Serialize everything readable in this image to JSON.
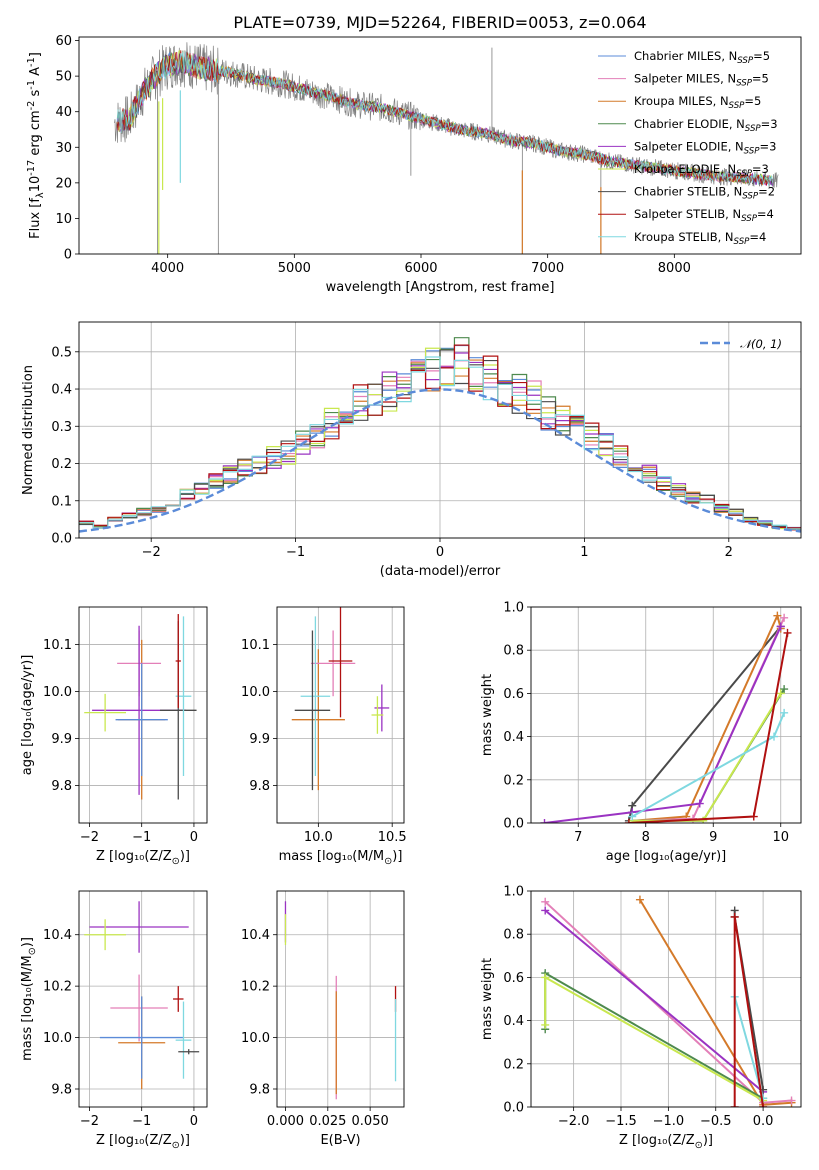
{
  "figure_title": "PLATE=0739, MJD=52264, FIBERID=0053, z=0.064",
  "colors": {
    "grey": "#7f7f7f",
    "blue": "#5b8bd8",
    "pink": "#e37fb8",
    "orange": "#d47a2a",
    "green": "#4e8a4e",
    "purple": "#9a33c2",
    "yellowgreen": "#c9e84f",
    "dark": "#4a4a4a",
    "red": "#b01010",
    "cyan": "#7fd8e0"
  },
  "chart_data": [
    {
      "id": "spectrum",
      "type": "line",
      "xlabel": "wavelength [Angstrom, rest frame]",
      "ylabel": "Flux [f$_\\lambda$10$^{-17}$ erg cm$^{-2}$ s$^{-1}$ A$^{-1}$]",
      "xlim": [
        3300,
        9000
      ],
      "ylim": [
        0,
        61
      ],
      "xticks": [
        4000,
        5000,
        6000,
        7000,
        8000
      ],
      "yticks": [
        0,
        10,
        20,
        30,
        40,
        50,
        60
      ],
      "grid": false,
      "legend_placement": "top-right",
      "series": [
        {
          "name": "Chabrier MILES, N_SSP=5",
          "color": "#5b8bd8"
        },
        {
          "name": "Salpeter MILES, N_SSP=5",
          "color": "#e37fb8"
        },
        {
          "name": "Kroupa MILES, N_SSP=5",
          "color": "#d47a2a"
        },
        {
          "name": "Chabrier ELODIE, N_SSP=3",
          "color": "#4e8a4e"
        },
        {
          "name": "Salpeter ELODIE, N_SSP=3",
          "color": "#9a33c2"
        },
        {
          "name": "Kroupa ELODIE, N_SSP=3",
          "color": "#c9e84f"
        },
        {
          "name": "Chabrier STELIB, N_SSP=2",
          "color": "#4a4a4a"
        },
        {
          "name": "Salpeter STELIB, N_SSP=4",
          "color": "#b01010"
        },
        {
          "name": "Kroupa STELIB, N_SSP=4",
          "color": "#7fd8e0"
        }
      ],
      "data_continuum": {
        "x": [
          3580,
          3700,
          3800,
          3900,
          4000,
          4100,
          4200,
          4300,
          4500,
          4700,
          4900,
          5100,
          5300,
          5500,
          5700,
          5900,
          6100,
          6300,
          6500,
          6700,
          6900,
          7100,
          7300,
          7500,
          7700,
          7900,
          8100,
          8300,
          8500,
          8800
        ],
        "y": [
          37,
          38,
          45,
          50,
          53,
          54,
          53,
          52,
          51,
          49,
          48,
          46,
          44,
          42,
          41,
          39,
          37,
          35,
          34,
          32,
          31,
          29,
          28,
          26,
          25,
          24,
          23,
          22,
          21.5,
          20.5
        ]
      }
    },
    {
      "id": "residuals",
      "type": "histogram",
      "xlabel": "(data-model)/error",
      "ylabel": "Normed distribution",
      "xlim": [
        -2.5,
        2.5
      ],
      "ylim": [
        0,
        0.58
      ],
      "xticks": [
        -2,
        -1,
        0,
        1,
        2
      ],
      "yticks": [
        0.0,
        0.1,
        0.2,
        0.3,
        0.4,
        0.5
      ],
      "grid": true,
      "legend_placement": "top-right",
      "reference_label": "$\\mathcal{N}(0,1)$",
      "bin_width": 0.1,
      "bin_start": -2.5,
      "hist_values": [
        0.04,
        0.03,
        0.05,
        0.06,
        0.07,
        0.08,
        0.1,
        0.12,
        0.13,
        0.15,
        0.17,
        0.19,
        0.2,
        0.22,
        0.23,
        0.25,
        0.28,
        0.31,
        0.33,
        0.36,
        0.37,
        0.39,
        0.41,
        0.44,
        0.46,
        0.47,
        0.48,
        0.45,
        0.43,
        0.4,
        0.39,
        0.37,
        0.34,
        0.31,
        0.3,
        0.27,
        0.25,
        0.22,
        0.19,
        0.17,
        0.15,
        0.13,
        0.11,
        0.1,
        0.08,
        0.07,
        0.05,
        0.04,
        0.03,
        0.025
      ]
    },
    {
      "id": "age_vs_Z",
      "type": "errorbar",
      "xlabel": "Z [$\\log_{10}(Z/Z_\\odot)$]",
      "ylabel": "age  [$\\log_{10}(age/yr)$]",
      "xlim": [
        -2.2,
        0.25
      ],
      "ylim": [
        9.72,
        10.18
      ],
      "xticks": [
        -2,
        -1,
        0
      ],
      "yticks": [
        9.8,
        9.9,
        10.0,
        10.1
      ],
      "grid": true,
      "points": [
        {
          "x": -1.0,
          "y": 9.94,
          "xerr": 0.45,
          "yerr": 0.17,
          "color": "#d47a2a"
        },
        {
          "x": -1.05,
          "y": 10.06,
          "xerr": 0.42,
          "yerr": 0.07,
          "color": "#e37fb8"
        },
        {
          "x": -1.05,
          "y": 9.96,
          "xerr": 0.9,
          "yerr": 0.18,
          "color": "#9a33c2"
        },
        {
          "x": -1.7,
          "y": 9.955,
          "xerr": 0.4,
          "yerr": 0.04,
          "color": "#c9e84f"
        },
        {
          "x": -1.0,
          "y": 9.94,
          "xerr": 0.5,
          "yerr": 0.12,
          "color": "#5b8bd8"
        },
        {
          "x": -0.3,
          "y": 9.96,
          "xerr": 0.35,
          "yerr": 0.19,
          "color": "#4a4a4a"
        },
        {
          "x": -0.2,
          "y": 9.99,
          "xerr": 0.15,
          "yerr": 0.17,
          "color": "#7fd8e0"
        },
        {
          "x": -0.3,
          "y": 10.065,
          "xerr": 0.05,
          "yerr": 0.1,
          "color": "#b01010"
        }
      ]
    },
    {
      "id": "age_vs_mass",
      "type": "errorbar",
      "xlabel": "mass [$\\log_{10}(M/M_\\odot)$]",
      "ylabel": "",
      "xlim": [
        9.72,
        10.58
      ],
      "ylim": [
        9.72,
        10.18
      ],
      "xticks": [
        10.0,
        10.5
      ],
      "yticks": [
        9.8,
        9.9,
        10.0,
        10.1
      ],
      "grid": true,
      "points": [
        {
          "x": 10.0,
          "y": 9.94,
          "xerr": 0.18,
          "yerr": 0.15,
          "color": "#d47a2a"
        },
        {
          "x": 10.1,
          "y": 10.06,
          "xerr": 0.15,
          "yerr": 0.07,
          "color": "#e37fb8"
        },
        {
          "x": 10.43,
          "y": 9.965,
          "xerr": 0.05,
          "yerr": 0.05,
          "color": "#9a33c2"
        },
        {
          "x": 10.4,
          "y": 9.95,
          "xerr": 0.04,
          "yerr": 0.04,
          "color": "#c9e84f"
        },
        {
          "x": 9.98,
          "y": 9.99,
          "xerr": 0.1,
          "yerr": 0.17,
          "color": "#7fd8e0"
        },
        {
          "x": 9.96,
          "y": 9.96,
          "xerr": 0.12,
          "yerr": 0.17,
          "color": "#4a4a4a"
        },
        {
          "x": 10.15,
          "y": 10.065,
          "xerr": 0.08,
          "yerr": 0.12,
          "color": "#b01010"
        }
      ]
    },
    {
      "id": "weight_vs_age",
      "type": "line",
      "xlabel": "age  [$\\log_{10}(age/yr)$]",
      "ylabel": "mass weight",
      "xlim": [
        6.3,
        10.3
      ],
      "ylim": [
        0.0,
        1.0
      ],
      "xticks": [
        7,
        8,
        9,
        10
      ],
      "yticks": [
        0.0,
        0.2,
        0.4,
        0.6,
        0.8,
        1.0
      ],
      "grid": true,
      "series": [
        {
          "color": "#4a4a4a",
          "x": [
            7.75,
            7.8,
            10.0
          ],
          "y": [
            0.01,
            0.08,
            0.91
          ]
        },
        {
          "color": "#d47a2a",
          "x": [
            7.8,
            8.6,
            9.95,
            10.0
          ],
          "y": [
            0.01,
            0.03,
            0.96,
            0.9
          ]
        },
        {
          "color": "#e37fb8",
          "x": [
            7.8,
            8.7,
            10.05
          ],
          "y": [
            0.01,
            0.02,
            0.95
          ]
        },
        {
          "color": "#9a33c2",
          "x": [
            6.5,
            7.8,
            8.8,
            10.0
          ],
          "y": [
            0.0,
            0.05,
            0.09,
            0.91
          ]
        },
        {
          "color": "#4e8a4e",
          "x": [
            7.8,
            8.85,
            10.05
          ],
          "y": [
            0.01,
            0.01,
            0.62
          ]
        },
        {
          "color": "#c9e84f",
          "x": [
            7.8,
            8.85,
            10.0
          ],
          "y": [
            0.01,
            0.01,
            0.6
          ]
        },
        {
          "color": "#7fd8e0",
          "x": [
            7.8,
            9.9,
            10.05
          ],
          "y": [
            0.03,
            0.4,
            0.51
          ]
        },
        {
          "color": "#b01010",
          "x": [
            7.75,
            9.6,
            10.1
          ],
          "y": [
            0.0,
            0.03,
            0.88
          ]
        }
      ]
    },
    {
      "id": "mass_vs_Z",
      "type": "errorbar",
      "xlabel": "Z [$\\log_{10}(Z/Z_\\odot)$]",
      "ylabel": "mass [$\\log_{10}(M/M_\\odot)$]",
      "xlim": [
        -2.2,
        0.25
      ],
      "ylim": [
        9.73,
        10.57
      ],
      "xticks": [
        -2,
        -1,
        0
      ],
      "yticks": [
        9.8,
        10.0,
        10.2,
        10.4
      ],
      "grid": true,
      "points": [
        {
          "x": -1.05,
          "y": 10.43,
          "xerr": 0.95,
          "yerr": 0.1,
          "color": "#9a33c2"
        },
        {
          "x": -1.7,
          "y": 10.4,
          "xerr": 0.4,
          "yerr": 0.06,
          "color": "#c9e84f"
        },
        {
          "x": -1.05,
          "y": 10.115,
          "xerr": 0.55,
          "yerr": 0.13,
          "color": "#e37fb8"
        },
        {
          "x": -1.0,
          "y": 9.98,
          "xerr": 0.45,
          "yerr": 0.18,
          "color": "#d47a2a"
        },
        {
          "x": -1.0,
          "y": 10.0,
          "xerr": 0.8,
          "yerr": 0.16,
          "color": "#5b8bd8"
        },
        {
          "x": -0.3,
          "y": 10.15,
          "xerr": 0.1,
          "yerr": 0.05,
          "color": "#b01010"
        },
        {
          "x": -0.2,
          "y": 9.99,
          "xerr": 0.15,
          "yerr": 0.15,
          "color": "#7fd8e0"
        },
        {
          "x": -0.1,
          "y": 9.945,
          "xerr": 0.2,
          "yerr": 0.01,
          "color": "#4a4a4a"
        }
      ]
    },
    {
      "id": "mass_vs_EBV",
      "type": "errorbar",
      "xlabel": "E(B-V)",
      "ylabel": "",
      "xlim": [
        -0.005,
        0.07
      ],
      "ylim": [
        9.73,
        10.57
      ],
      "xticks": [
        0.0,
        0.025,
        0.05
      ],
      "xticklabels": [
        "0.000",
        "0.025",
        "0.050"
      ],
      "yticks": [
        9.8,
        10.0,
        10.2,
        10.4
      ],
      "grid": true,
      "points": [
        {
          "x": 0.0,
          "y": 10.45,
          "xerr": 0.0,
          "yerr": 0.08,
          "color": "#9a33c2"
        },
        {
          "x": 0.0,
          "y": 10.42,
          "xerr": 0.0,
          "yerr": 0.06,
          "color": "#c9e84f"
        },
        {
          "x": 0.03,
          "y": 10.0,
          "xerr": 0.0,
          "yerr": 0.24,
          "color": "#e37fb8"
        },
        {
          "x": 0.03,
          "y": 9.98,
          "xerr": 0.0,
          "yerr": 0.2,
          "color": "#d47a2a"
        },
        {
          "x": 0.065,
          "y": 10.15,
          "xerr": 0.0,
          "yerr": 0.05,
          "color": "#b01010"
        },
        {
          "x": 0.065,
          "y": 9.99,
          "xerr": 0.0,
          "yerr": 0.16,
          "color": "#7fd8e0"
        }
      ]
    },
    {
      "id": "weight_vs_Z",
      "type": "line",
      "xlabel": "Z [$\\log_{10}(Z/Z_\\odot)$]",
      "ylabel": "mass weight",
      "xlim": [
        -2.45,
        0.4
      ],
      "ylim": [
        0.0,
        1.0
      ],
      "xticks": [
        -2.0,
        -1.5,
        -1.0,
        -0.5,
        0.0
      ],
      "xticklabels": [
        "−2.0",
        "−1.5",
        "−1.0",
        "−0.5",
        "0.0"
      ],
      "yticks": [
        0.0,
        0.2,
        0.4,
        0.6,
        0.8,
        1.0
      ],
      "grid": true,
      "series": [
        {
          "color": "#d47a2a",
          "x": [
            -1.3,
            0.0,
            0.3
          ],
          "y": [
            0.96,
            0.01,
            0.02
          ]
        },
        {
          "color": "#e37fb8",
          "x": [
            -2.3,
            0.0,
            0.3
          ],
          "y": [
            0.95,
            0.02,
            0.03
          ]
        },
        {
          "color": "#9a33c2",
          "x": [
            -2.3,
            0.0
          ],
          "y": [
            0.91,
            0.07
          ]
        },
        {
          "color": "#4a4a4a",
          "x": [
            -0.3,
            -0.3,
            0.0
          ],
          "y": [
            0.91,
            0.88,
            0.08
          ]
        },
        {
          "color": "#4e8a4e",
          "x": [
            -2.3,
            -2.3,
            0.0
          ],
          "y": [
            0.36,
            0.62,
            0.04
          ]
        },
        {
          "color": "#c9e84f",
          "x": [
            -2.3,
            -2.3,
            0.0
          ],
          "y": [
            0.38,
            0.6,
            0.03
          ]
        },
        {
          "color": "#7fd8e0",
          "x": [
            -0.3,
            0.0
          ],
          "y": [
            0.51,
            0.04
          ]
        },
        {
          "color": "#b01010",
          "x": [
            -0.3,
            -0.3,
            0.0
          ],
          "y": [
            0.0,
            0.88,
            0.0
          ]
        }
      ]
    }
  ]
}
